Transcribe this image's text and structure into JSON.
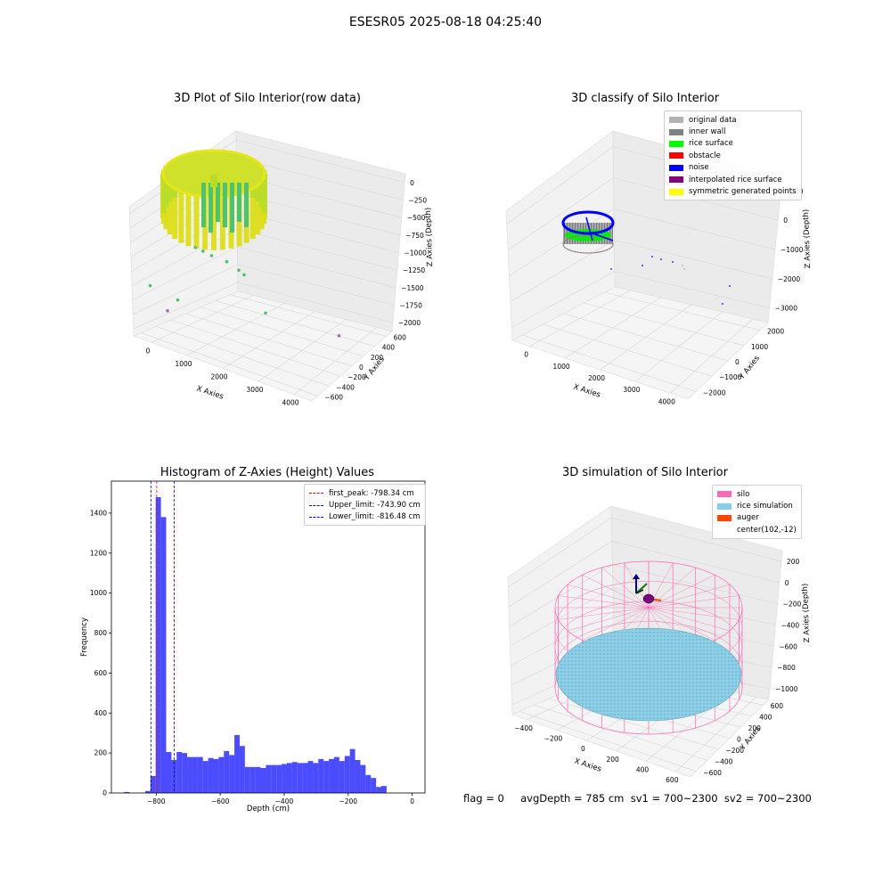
{
  "suptitle": "ESESR05 2025-08-18 04:25:40",
  "footer": "flag = 0     avgDepth = 785 cm  sv1 = 700~2300  sv2 = 700~2300",
  "chart_data": [
    {
      "type": "scatter",
      "title": "3D Plot of Silo Interior(row data)",
      "xlabel": "X Axies",
      "ylabel": "Y Axies",
      "zlabel": "Z Axies (Depth)",
      "x_ticks": [
        "0",
        "1000",
        "2000",
        "3000",
        "4000"
      ],
      "y_ticks": [
        "−600",
        "−400",
        "−200",
        "0",
        "200",
        "400",
        "600"
      ],
      "z_ticks": [
        "0",
        "−250",
        "−500",
        "−750",
        "−1000",
        "−1250",
        "−1500",
        "−1750",
        "−2000"
      ],
      "colors": [
        "#ddde1a",
        "#b9dc2a",
        "#4ec26c",
        "#2a9f8a",
        "#9a6fc0"
      ],
      "outlier_points": [
        {
          "x": 850,
          "y": -120,
          "z": -1000
        },
        {
          "x": 950,
          "y": -200,
          "z": -1050
        },
        {
          "x": 1100,
          "y": -260,
          "z": -1100
        },
        {
          "x": 1400,
          "y": -330,
          "z": -1150
        },
        {
          "x": 1600,
          "y": -420,
          "z": -1250
        },
        {
          "x": 1700,
          "y": -450,
          "z": -1300
        },
        {
          "x": 100,
          "y": 220,
          "z": -1500
        },
        {
          "x": 600,
          "y": 50,
          "z": -1650
        },
        {
          "x": 400,
          "y": 100,
          "z": -1800
        },
        {
          "x": 2400,
          "y": -300,
          "z": -1650
        },
        {
          "x": 3900,
          "y": -600,
          "z": -1800
        }
      ]
    },
    {
      "type": "scatter",
      "title": "3D classify of Silo Interior",
      "xlabel": "X Axies",
      "ylabel": "Y Axies",
      "zlabel": "Z Axies (Depth)",
      "x_ticks": [
        "0",
        "1000",
        "2000",
        "3000",
        "4000"
      ],
      "y_ticks": [
        "−2000",
        "−1000",
        "0",
        "1000",
        "2000"
      ],
      "z_ticks": [
        "1000",
        "0",
        "−1000",
        "−2000",
        "−3000"
      ],
      "legend": [
        {
          "label": "original data",
          "color": "#b3b3b3"
        },
        {
          "label": "inner wall",
          "color": "#808080"
        },
        {
          "label": "rice surface",
          "color": "#00ff00"
        },
        {
          "label": "obstacle",
          "color": "#ff0000"
        },
        {
          "label": "noise",
          "color": "#0000ff"
        },
        {
          "label": "interpolated rice surface",
          "color": "#800080"
        },
        {
          "label": "symmetric generated points",
          "color": "#ffff00"
        }
      ]
    },
    {
      "type": "bar",
      "title": "Histogram of Z-Axies (Height) Values",
      "xlabel": "Depth (cm)",
      "ylabel": "Frequency",
      "xlim": [
        -940,
        40
      ],
      "ylim": [
        0,
        1560
      ],
      "x_ticks": [
        -800,
        -600,
        -400,
        -200,
        0
      ],
      "x_tick_labels": [
        "−800",
        "−600",
        "−400",
        "−200",
        "0"
      ],
      "y_ticks": [
        0,
        200,
        400,
        600,
        800,
        1000,
        1200,
        1400
      ],
      "y_tick_labels": [
        "0",
        "200",
        "400",
        "600",
        "800",
        "1000",
        "1200",
        "1400"
      ],
      "bar_color": "#0000ff",
      "bin_edges": [
        -900,
        -883.6,
        -867.2,
        -850.8,
        -834.4,
        -818,
        -801.6,
        -785.2,
        -768.8,
        -752.4,
        -736,
        -719.6,
        -703.2,
        -686.8,
        -670.4,
        -654,
        -637.6,
        -621.2,
        -604.8,
        -588.4,
        -572,
        -555.6,
        -539.2,
        -522.8,
        -506.4,
        -490,
        -473.6,
        -457.2,
        -440.8,
        -424.4,
        -408,
        -391.6,
        -375.2,
        -358.8,
        -342.4,
        -326,
        -309.6,
        -293.2,
        -276.8,
        -260.4,
        -244,
        -227.6,
        -211.2,
        -194.8,
        -178.4,
        -162,
        -145.6,
        -129.2,
        -112.8,
        -96.4,
        -80,
        -63.6,
        -47.2,
        -30.8,
        -14.4,
        0
      ],
      "values": [
        5,
        0,
        0,
        0,
        10,
        85,
        1480,
        1380,
        205,
        165,
        205,
        200,
        180,
        180,
        180,
        160,
        175,
        170,
        180,
        210,
        190,
        290,
        235,
        130,
        130,
        130,
        125,
        140,
        140,
        140,
        145,
        150,
        155,
        150,
        150,
        160,
        150,
        170,
        160,
        170,
        180,
        160,
        185,
        220,
        165,
        140,
        90,
        75,
        30,
        35,
        0,
        0,
        0,
        0,
        0
      ],
      "vlines": [
        {
          "label": "first_peak: -798.34 cm",
          "x": -798.34,
          "color": "#ff0000"
        },
        {
          "label": "Upper_limit: -743.90 cm",
          "x": -743.9,
          "color": "#0000cc"
        },
        {
          "label": "Lower_limit: -816.48 cm",
          "x": -816.48,
          "color": "#0000cc"
        }
      ]
    },
    {
      "type": "scatter",
      "title": "3D simulation of Silo Interior",
      "xlabel": "X Axies",
      "ylabel": "Y Axies",
      "zlabel": "Z Axies (Depth)",
      "x_ticks": [
        "−400",
        "−200",
        "0",
        "200",
        "400",
        "600"
      ],
      "y_ticks": [
        "−600",
        "−400",
        "−200",
        "0",
        "200",
        "400",
        "600"
      ],
      "z_ticks": [
        "200",
        "0",
        "−200",
        "−400",
        "−600",
        "−800",
        "−1000"
      ],
      "legend": [
        {
          "label": "silo",
          "color": "#ff69b4"
        },
        {
          "label": "rice simulation",
          "color": "#87ceeb"
        },
        {
          "label": "auger",
          "color": "#ff4500"
        },
        {
          "label": "center(102,-12)",
          "color": ""
        }
      ]
    }
  ]
}
